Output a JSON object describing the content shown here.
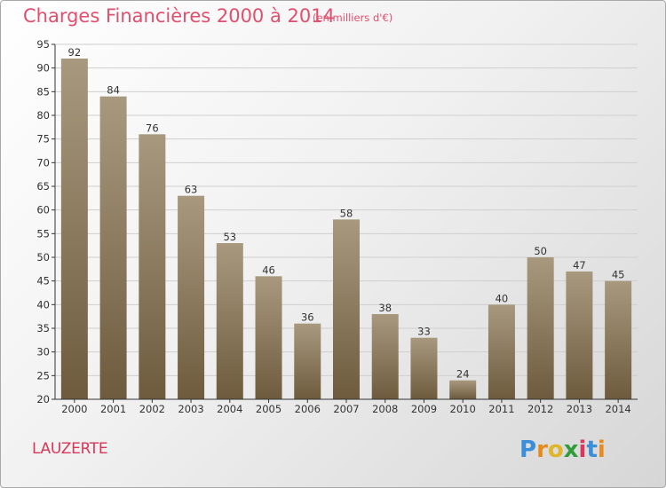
{
  "header": {
    "title": "Charges Financières 2000 à 2014",
    "subtitle": "(en milliers d'€)"
  },
  "footer": {
    "place": "LAUZERTE",
    "logo_text": "Proxiti"
  },
  "colors": {
    "title": "#e04f6e",
    "bar_top": "#a8997e",
    "bar_bottom": "#6e5b3e",
    "grid": "#cfcfcf"
  },
  "chart_data": {
    "type": "bar",
    "title": "Charges Financières 2000 à 2014",
    "subtitle": "(en milliers d'€)",
    "categories": [
      "2000",
      "2001",
      "2002",
      "2003",
      "2004",
      "2005",
      "2006",
      "2007",
      "2008",
      "2009",
      "2010",
      "2011",
      "2012",
      "2013",
      "2014"
    ],
    "values": [
      92,
      84,
      76,
      63,
      53,
      46,
      36,
      58,
      38,
      33,
      24,
      40,
      50,
      47,
      45
    ],
    "ylim": [
      20,
      95
    ],
    "yticks": [
      20,
      25,
      30,
      35,
      40,
      45,
      50,
      55,
      60,
      65,
      70,
      75,
      80,
      85,
      90,
      95
    ],
    "grid": true,
    "data_labels": true
  }
}
